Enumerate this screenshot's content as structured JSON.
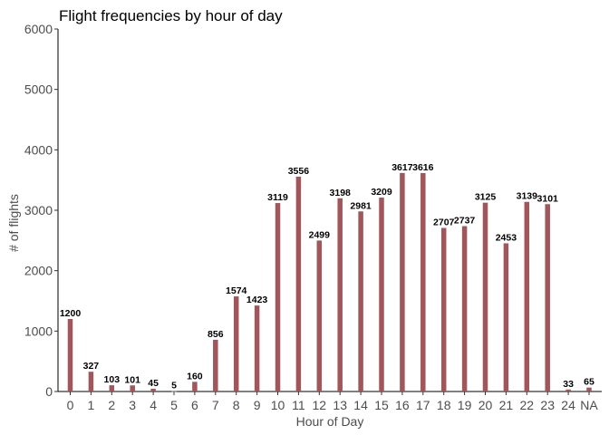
{
  "chart_data": {
    "type": "bar",
    "title": "Flight frequencies  by hour of day",
    "xlabel": "Hour of Day",
    "ylabel": "# of flights",
    "categories": [
      "0",
      "1",
      "2",
      "3",
      "4",
      "5",
      "6",
      "7",
      "8",
      "9",
      "10",
      "11",
      "12",
      "13",
      "14",
      "15",
      "16",
      "17",
      "18",
      "19",
      "20",
      "21",
      "22",
      "23",
      "24",
      "NA"
    ],
    "values": [
      1200,
      327,
      103,
      101,
      45,
      5,
      160,
      856,
      1574,
      1423,
      3119,
      3556,
      2499,
      3198,
      2981,
      3209,
      3617,
      3616,
      2707,
      2737,
      3125,
      2453,
      3139,
      3101,
      33,
      65
    ],
    "ylim": [
      0,
      6000
    ],
    "yticks": [
      0,
      1000,
      2000,
      3000,
      4000,
      5000,
      6000
    ],
    "bar_color": "#a0565a",
    "grid": false,
    "legend": false
  }
}
